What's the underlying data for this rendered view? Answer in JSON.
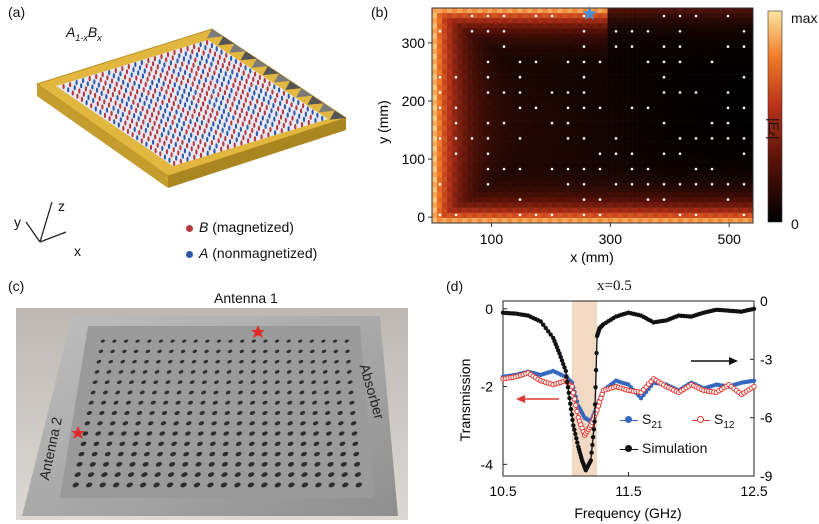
{
  "panels": {
    "a": {
      "label": "(a)",
      "formula": {
        "A": "A",
        "sub1": "1-x",
        "B": "B",
        "sub2": "x"
      },
      "axes": {
        "x": "x",
        "y": "y",
        "z": "z"
      },
      "legend": [
        {
          "italic": "B",
          "text": " (magnetized)",
          "color": "#b5383d"
        },
        {
          "italic": "A",
          "text": " (nonmagnetized)",
          "color": "#2f57a8"
        }
      ],
      "colors": {
        "frame": "#e2b740",
        "absorber": "#666666",
        "plate": "#e8eaf3"
      }
    },
    "b": {
      "label": "(b)",
      "xlabel": "x (mm)",
      "ylabel": "y (mm)",
      "colorbar": {
        "max": "max",
        "min": "0",
        "label_main": "|E",
        "label_sub": "z",
        "label_end": "|"
      },
      "source_marker": "star"
    },
    "c": {
      "label": "(c)",
      "antenna1": "Antenna 1",
      "antenna2": "Antenna 2",
      "absorber": "Absorber"
    },
    "d": {
      "label": "(d)",
      "title": "x=0.5",
      "legend": {
        "s21": "S",
        "s21_sub": "21",
        "s12": "S",
        "s12_sub": "12",
        "sim": "Simulation"
      }
    }
  },
  "chart_data": [
    {
      "type": "heatmap",
      "panel": "b",
      "xlabel": "x (mm)",
      "ylabel": "y (mm)",
      "xticks": [
        100,
        300,
        500
      ],
      "yticks": [
        0,
        100,
        200,
        300
      ],
      "xlim": [
        0,
        540
      ],
      "ylim": [
        -10,
        360
      ],
      "colorscale": [
        "#000000",
        "#5a1308",
        "#b8321a",
        "#f07a28",
        "#fbe6a0"
      ],
      "colorbar_range": [
        "0",
        "max"
      ],
      "source_marker": {
        "x": 265,
        "y": 350
      }
    },
    {
      "type": "line",
      "panel": "d",
      "title": "x=0.5",
      "xlabel": "Frequency (GHz)",
      "ylabel": "Transmission",
      "xlim": [
        10.5,
        12.5
      ],
      "xticks": [
        10.5,
        11.5,
        12.5
      ],
      "ylim_left": [
        -4.3,
        0.2
      ],
      "yticks_left": [
        0,
        -2,
        -4
      ],
      "ylim_right": [
        -9,
        0
      ],
      "yticks_right": [
        0,
        -3,
        -6,
        -9
      ],
      "shaded_band": [
        11.05,
        11.25
      ],
      "colors": {
        "s21": "#3768c0",
        "s12": "#e03a32",
        "sim": "#111111",
        "band": "#f1d9c4"
      },
      "series": [
        {
          "name": "S21",
          "axis": "left",
          "x": [
            10.5,
            10.6,
            10.7,
            10.8,
            10.9,
            11.0,
            11.05,
            11.1,
            11.15,
            11.2,
            11.25,
            11.3,
            11.4,
            11.5,
            11.6,
            11.7,
            11.8,
            11.9,
            12.0,
            12.1,
            12.2,
            12.3,
            12.4,
            12.5
          ],
          "values": [
            -1.75,
            -1.7,
            -1.62,
            -1.7,
            -1.6,
            -1.75,
            -1.9,
            -2.5,
            -2.8,
            -2.9,
            -2.5,
            -2.1,
            -1.85,
            -1.95,
            -2.3,
            -1.9,
            -1.95,
            -2.1,
            -1.9,
            -2.05,
            -1.95,
            -2.0,
            -1.9,
            -1.85
          ]
        },
        {
          "name": "S12",
          "axis": "left",
          "x": [
            10.5,
            10.6,
            10.7,
            10.8,
            10.9,
            11.0,
            11.05,
            11.1,
            11.15,
            11.2,
            11.25,
            11.3,
            11.4,
            11.5,
            11.6,
            11.7,
            11.8,
            11.9,
            12.0,
            12.1,
            12.2,
            12.3,
            12.4,
            12.5
          ],
          "values": [
            -1.8,
            -1.75,
            -1.65,
            -1.85,
            -1.95,
            -1.85,
            -2.0,
            -2.8,
            -3.25,
            -3.0,
            -2.6,
            -2.1,
            -2.0,
            -2.1,
            -2.15,
            -1.8,
            -2.0,
            -2.15,
            -1.95,
            -2.1,
            -2.15,
            -1.95,
            -2.2,
            -2.0
          ]
        },
        {
          "name": "Simulation",
          "axis": "right",
          "x": [
            10.5,
            10.6,
            10.7,
            10.8,
            10.9,
            10.95,
            11.0,
            11.03,
            11.06,
            11.1,
            11.13,
            11.16,
            11.2,
            11.23,
            11.25,
            11.27,
            11.3,
            11.4,
            11.5,
            11.6,
            11.7,
            11.8,
            11.9,
            12.0,
            12.1,
            12.2,
            12.3,
            12.4,
            12.5
          ],
          "values": [
            -0.6,
            -0.65,
            -0.75,
            -1.05,
            -1.9,
            -2.7,
            -3.6,
            -5.0,
            -6.4,
            -7.5,
            -8.2,
            -8.7,
            -8.2,
            -6.2,
            -1.8,
            -1.4,
            -1.2,
            -0.8,
            -0.6,
            -0.75,
            -1.1,
            -1.0,
            -0.75,
            -0.8,
            -0.6,
            -0.45,
            -0.5,
            -0.55,
            -0.4
          ]
        }
      ]
    }
  ]
}
